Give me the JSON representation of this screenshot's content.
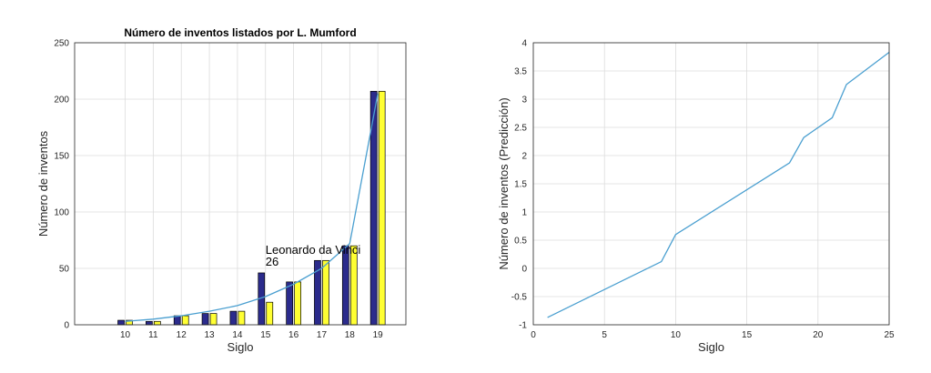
{
  "chart_data": [
    {
      "type": "bar",
      "title": "Número de inventos listados por L. Mumford",
      "xlabel": "Siglo",
      "ylabel": "Número de inventos",
      "xlim": [
        8.2,
        20
      ],
      "ylim": [
        0,
        250
      ],
      "yticks": [
        0,
        50,
        100,
        150,
        200,
        250
      ],
      "categories": [
        "10",
        "11",
        "12",
        "13",
        "14",
        "15",
        "16",
        "17",
        "18",
        "19"
      ],
      "x": [
        10,
        11,
        12,
        13,
        14,
        15,
        16,
        17,
        18,
        19
      ],
      "series": [
        {
          "values": [
            4,
            3,
            8,
            10,
            12,
            46,
            38,
            57,
            70,
            207
          ],
          "color": "#2b2b8c"
        },
        {
          "values": [
            4,
            3,
            8,
            10,
            12,
            20,
            38,
            57,
            70,
            207
          ],
          "color": "#ffff33"
        }
      ],
      "fit_line": {
        "color": "#4a9fd0",
        "x": [
          10,
          11,
          12,
          13,
          14,
          15,
          16,
          17,
          18,
          19
        ],
        "y": [
          3,
          5,
          8,
          12,
          17,
          25,
          36,
          50,
          72,
          205
        ]
      },
      "annotation": {
        "text": [
          "Leonardo da Vinci",
          "26"
        ],
        "x": 15,
        "y": 63
      },
      "grid": true
    },
    {
      "type": "line",
      "title": "",
      "xlabel": "Siglo",
      "ylabel": "Número de inventos (Predicción)",
      "xlim": [
        0,
        25
      ],
      "ylim": [
        -1,
        4
      ],
      "xticks": [
        0,
        5,
        10,
        15,
        20,
        25
      ],
      "yticks": [
        -1,
        -0.5,
        0,
        0.5,
        1,
        1.5,
        2,
        2.5,
        3,
        3.5,
        4
      ],
      "series": [
        {
          "color": "#4a9fd0",
          "x": [
            1,
            9,
            10,
            18,
            19,
            21,
            22,
            25
          ],
          "y": [
            -0.87,
            0.12,
            0.6,
            1.87,
            2.32,
            2.67,
            3.26,
            3.83
          ]
        }
      ],
      "grid": true
    }
  ]
}
